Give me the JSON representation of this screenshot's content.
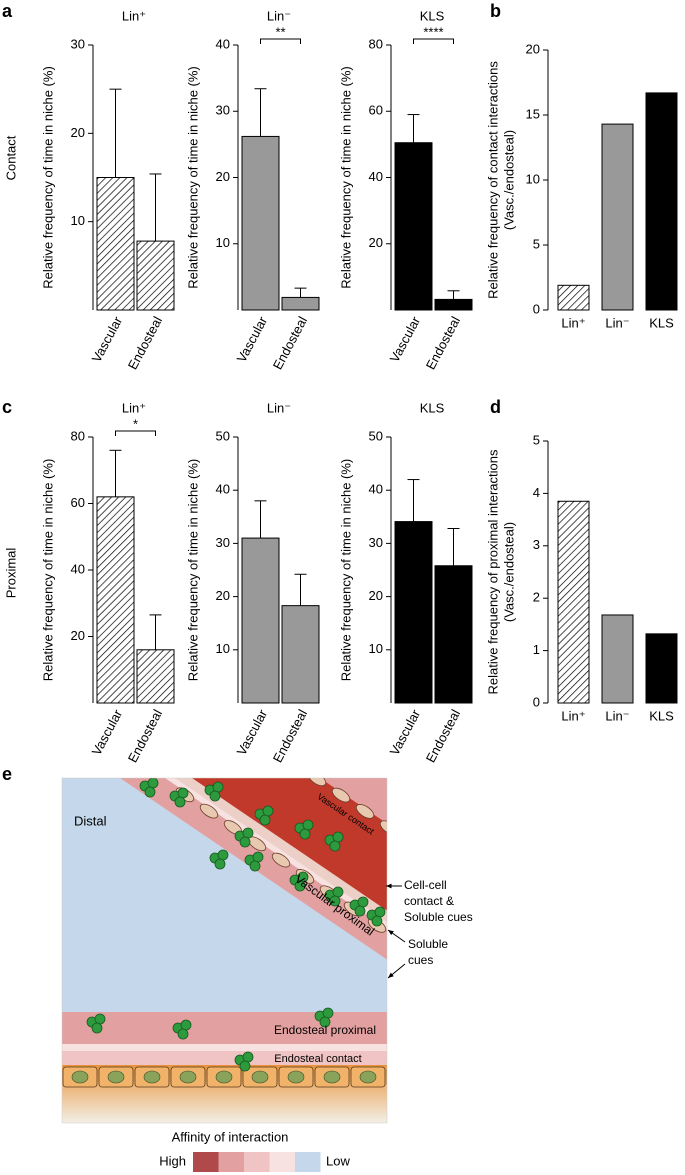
{
  "panel_labels": [
    "a",
    "b",
    "c",
    "d",
    "e"
  ],
  "row_labels": [
    "Contact",
    "Proximal"
  ],
  "chart_data": [
    {
      "type": "bar",
      "title": "Lin⁺",
      "ylabel": [
        "Relative frequency of time in niche (%)"
      ],
      "categories": [
        "Vascular",
        "Endosteal"
      ],
      "values": [
        15,
        7.8
      ],
      "errors": [
        10,
        7.6
      ],
      "colors": [
        "#ffffff",
        "#ffffff"
      ],
      "hatch": [
        true,
        true
      ],
      "ylim": [
        0,
        30
      ],
      "yticks": [
        10,
        20,
        30
      ]
    },
    {
      "type": "bar",
      "title": "Lin⁻",
      "ylabel": [
        "Relative frequency of time in niche (%)"
      ],
      "categories": [
        "Vascular",
        "Endosteal"
      ],
      "values": [
        26.2,
        1.9
      ],
      "errors": [
        7.2,
        1.4
      ],
      "colors": [
        "#999999",
        "#999999"
      ],
      "hatch": [
        false,
        false
      ],
      "ylim": [
        0,
        40
      ],
      "yticks": [
        10,
        20,
        30,
        40
      ],
      "annotation": "**"
    },
    {
      "type": "bar",
      "title": "KLS",
      "ylabel": [
        "Relative frequency of time in niche (%)"
      ],
      "categories": [
        "Vascular",
        "Endosteal"
      ],
      "values": [
        50.5,
        3.2
      ],
      "errors": [
        8.5,
        2.6
      ],
      "colors": [
        "#000000",
        "#000000"
      ],
      "hatch": [
        false,
        false
      ],
      "ylim": [
        0,
        80
      ],
      "yticks": [
        20,
        40,
        60,
        80
      ],
      "annotation": "****"
    },
    {
      "type": "bar",
      "ylabel": [
        "Relative frequency of contact interactions",
        "(Vasc./endosteal)"
      ],
      "categories": [
        "Lin⁺",
        "Lin⁻",
        "KLS"
      ],
      "values": [
        1.9,
        14.3,
        16.7
      ],
      "colors": [
        "#ffffff",
        "#999999",
        "#000000"
      ],
      "hatch": [
        true,
        false,
        false
      ],
      "ylim": [
        0,
        20
      ],
      "yticks": [
        0,
        5,
        10,
        15,
        20
      ]
    },
    {
      "type": "bar",
      "title": "Lin⁺",
      "ylabel": [
        "Relative frequency of time in niche (%)"
      ],
      "categories": [
        "Vascular",
        "Endosteal"
      ],
      "values": [
        62,
        16
      ],
      "errors": [
        14,
        10.5
      ],
      "colors": [
        "#ffffff",
        "#ffffff"
      ],
      "hatch": [
        true,
        true
      ],
      "ylim": [
        0,
        80
      ],
      "yticks": [
        20,
        40,
        60,
        80
      ],
      "annotation": "*"
    },
    {
      "type": "bar",
      "title": "Lin⁻",
      "ylabel": [
        "Relative frequency of time in niche (%)"
      ],
      "categories": [
        "Vascular",
        "Endosteal"
      ],
      "values": [
        31,
        18.3
      ],
      "errors": [
        7,
        5.9
      ],
      "colors": [
        "#999999",
        "#999999"
      ],
      "hatch": [
        false,
        false
      ],
      "ylim": [
        0,
        50
      ],
      "yticks": [
        10,
        20,
        30,
        40,
        50
      ]
    },
    {
      "type": "bar",
      "title": "KLS",
      "ylabel": [
        "Relative frequency of time in niche (%)"
      ],
      "categories": [
        "Vascular",
        "Endosteal"
      ],
      "values": [
        34.1,
        25.8
      ],
      "errors": [
        7.9,
        7
      ],
      "colors": [
        "#000000",
        "#000000"
      ],
      "hatch": [
        false,
        false
      ],
      "ylim": [
        0,
        50
      ],
      "yticks": [
        10,
        20,
        30,
        40,
        50
      ]
    },
    {
      "type": "bar",
      "ylabel": [
        "Relative frequency of proximal interactions",
        "(Vasc./endosteal)"
      ],
      "categories": [
        "Lin⁺",
        "Lin⁻",
        "KLS"
      ],
      "values": [
        3.85,
        1.68,
        1.32
      ],
      "colors": [
        "#ffffff",
        "#999999",
        "#000000"
      ],
      "hatch": [
        true,
        false,
        false
      ],
      "ylim": [
        0,
        5
      ],
      "yticks": [
        0,
        1,
        2,
        3,
        4,
        5
      ]
    }
  ],
  "diagram": {
    "distal": "Distal",
    "vascular_contact": "Vascular contact",
    "vascular_proximal": "Vascular proximal",
    "endosteal_proximal": "Endosteal proximal",
    "endosteal_contact": "Endosteal contact",
    "cue_contact": [
      "Cell-cell",
      "contact &",
      "Soluble cues"
    ],
    "cue_soluble": [
      "Soluble",
      "cues"
    ],
    "legend_title": "Affinity of interaction",
    "legend_high": "High",
    "legend_low": "Low"
  }
}
